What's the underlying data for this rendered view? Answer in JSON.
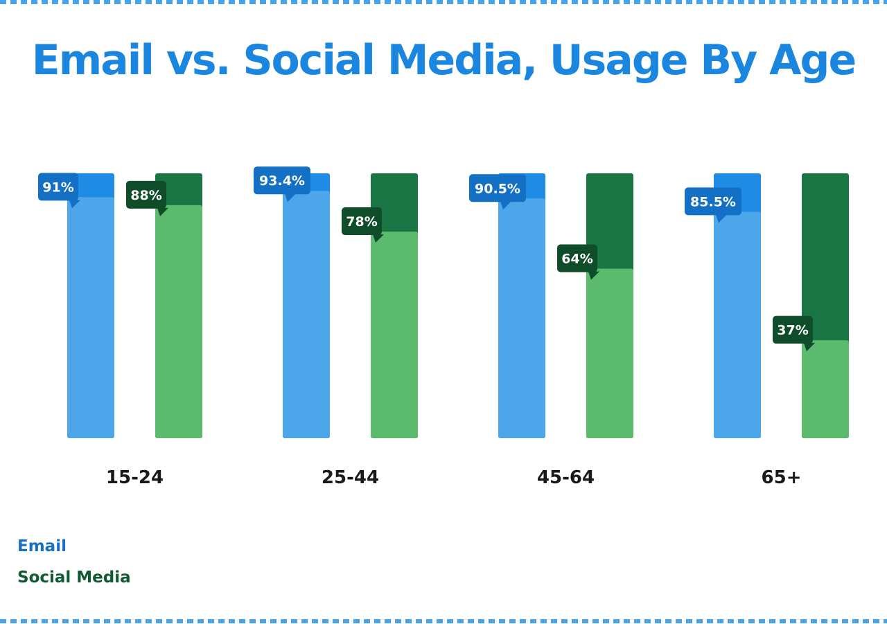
{
  "chart_data": {
    "type": "bar",
    "title": "Email vs. Social Media, Usage By Age",
    "xlabel": "",
    "ylabel": "",
    "ylim": [
      0,
      100
    ],
    "categories": [
      "15-24",
      "25-44",
      "45-64",
      "65+"
    ],
    "series": [
      {
        "name": "Email",
        "values": [
          91,
          93.4,
          90.5,
          85.5
        ],
        "labels": [
          "91%",
          "93.4%",
          "90.5%",
          "85.5%"
        ],
        "color_fill": "#4da5ea",
        "color_track": "#1e8be4",
        "color_label": "#1470c4"
      },
      {
        "name": "Social Media",
        "values": [
          88,
          78,
          64,
          37
        ],
        "labels": [
          "88%",
          "78%",
          "64%",
          "37%"
        ],
        "color_fill": "#5cba6f",
        "color_track": "#197544",
        "color_label": "#0f4c2a"
      }
    ],
    "legend": "bottom-left",
    "grid": false
  },
  "legend_colors": {
    "email": "#1a6fc2",
    "social": "#0f5a32"
  }
}
